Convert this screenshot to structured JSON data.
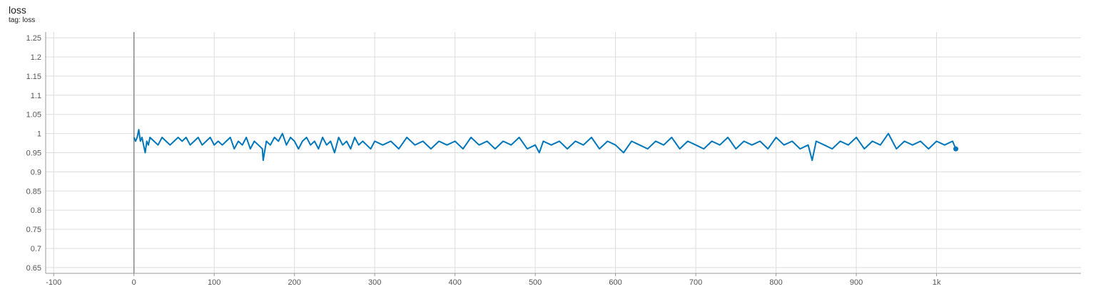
{
  "card": {
    "title": "loss",
    "subtitle": "tag: loss"
  },
  "colors": {
    "series": "#0077bb",
    "grid": "#dddddd",
    "axis": "#999999",
    "zero_line": "#888888"
  },
  "chart_data": {
    "type": "line",
    "title": "loss",
    "subtitle": "tag: loss",
    "xlabel": "",
    "ylabel": "",
    "xlim": [
      -110,
      1180
    ],
    "ylim": [
      0.635,
      1.265
    ],
    "x_ticks": [
      -100,
      0,
      100,
      200,
      300,
      400,
      500,
      600,
      700,
      800,
      900,
      1000
    ],
    "x_tick_labels": [
      "-100",
      "0",
      "100",
      "200",
      "300",
      "400",
      "500",
      "600",
      "700",
      "800",
      "900",
      "1k"
    ],
    "y_ticks": [
      0.65,
      0.7,
      0.75,
      0.8,
      0.85,
      0.9,
      0.95,
      1,
      1.05,
      1.1,
      1.15,
      1.2,
      1.25
    ],
    "y_tick_labels": [
      "0.65",
      "0.7",
      "0.75",
      "0.8",
      "0.85",
      "0.9",
      "0.95",
      "1",
      "1.05",
      "1.1",
      "1.15",
      "1.2",
      "1.25"
    ],
    "grid": true,
    "legend": "none",
    "series": [
      {
        "x": [
          0,
          2,
          4,
          6,
          8,
          10,
          12,
          14,
          16,
          18,
          20,
          25,
          30,
          35,
          40,
          45,
          50,
          55,
          60,
          65,
          70,
          75,
          80,
          85,
          90,
          95,
          100,
          105,
          110,
          115,
          120,
          125,
          130,
          135,
          140,
          145,
          150,
          155,
          160,
          161,
          165,
          170,
          175,
          180,
          185,
          190,
          195,
          200,
          205,
          210,
          215,
          220,
          225,
          230,
          235,
          240,
          245,
          250,
          255,
          260,
          265,
          270,
          275,
          280,
          285,
          290,
          295,
          300,
          310,
          320,
          330,
          340,
          350,
          360,
          370,
          380,
          390,
          400,
          410,
          420,
          430,
          440,
          450,
          460,
          470,
          480,
          490,
          500,
          505,
          510,
          520,
          530,
          540,
          550,
          560,
          570,
          580,
          590,
          600,
          610,
          620,
          630,
          640,
          650,
          660,
          670,
          680,
          690,
          700,
          710,
          720,
          730,
          740,
          750,
          760,
          770,
          780,
          790,
          800,
          810,
          820,
          830,
          840,
          845,
          850,
          860,
          870,
          880,
          890,
          900,
          910,
          920,
          930,
          940,
          950,
          960,
          970,
          980,
          990,
          1000,
          1010,
          1020,
          1024
        ],
        "y": [
          0.99,
          0.98,
          0.99,
          1.01,
          0.98,
          0.99,
          0.97,
          0.95,
          0.98,
          0.97,
          0.99,
          0.98,
          0.97,
          0.99,
          0.98,
          0.97,
          0.98,
          0.99,
          0.98,
          0.99,
          0.97,
          0.98,
          0.99,
          0.97,
          0.98,
          0.99,
          0.97,
          0.98,
          0.97,
          0.98,
          0.99,
          0.96,
          0.98,
          0.97,
          0.99,
          0.96,
          0.98,
          0.97,
          0.96,
          0.93,
          0.98,
          0.97,
          0.99,
          0.98,
          1.0,
          0.97,
          0.99,
          0.98,
          0.96,
          0.98,
          0.99,
          0.97,
          0.98,
          0.96,
          0.99,
          0.97,
          0.98,
          0.95,
          0.99,
          0.97,
          0.98,
          0.96,
          0.99,
          0.97,
          0.98,
          0.97,
          0.96,
          0.98,
          0.97,
          0.98,
          0.96,
          0.99,
          0.97,
          0.98,
          0.96,
          0.98,
          0.97,
          0.98,
          0.96,
          0.99,
          0.97,
          0.98,
          0.96,
          0.98,
          0.97,
          0.99,
          0.96,
          0.97,
          0.95,
          0.98,
          0.97,
          0.98,
          0.96,
          0.98,
          0.97,
          0.99,
          0.96,
          0.98,
          0.97,
          0.95,
          0.98,
          0.97,
          0.96,
          0.98,
          0.97,
          0.99,
          0.96,
          0.98,
          0.97,
          0.96,
          0.98,
          0.97,
          0.99,
          0.96,
          0.98,
          0.97,
          0.98,
          0.96,
          0.99,
          0.97,
          0.98,
          0.96,
          0.97,
          0.93,
          0.98,
          0.97,
          0.96,
          0.98,
          0.97,
          0.99,
          0.96,
          0.98,
          0.97,
          1.0,
          0.96,
          0.98,
          0.97,
          0.98,
          0.96,
          0.98,
          0.97,
          0.98,
          0.96
        ]
      }
    ]
  }
}
